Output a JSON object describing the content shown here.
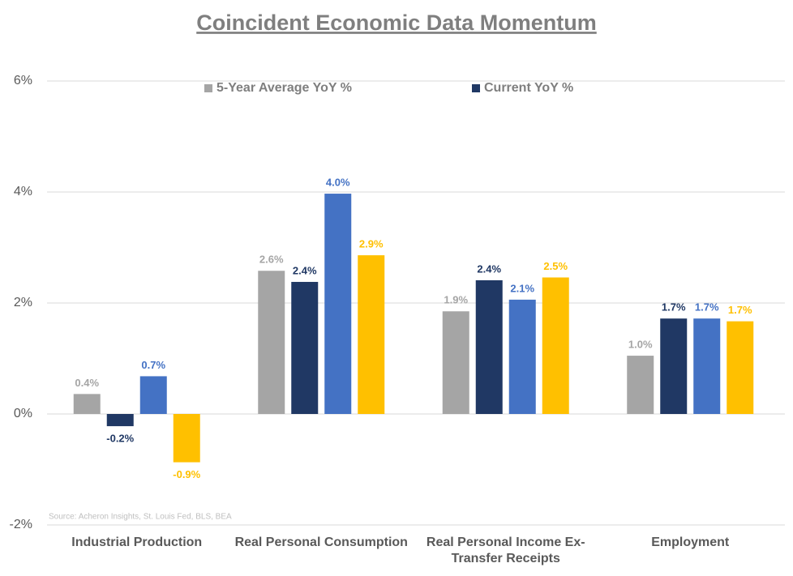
{
  "chart_data": {
    "type": "bar",
    "title": "Coincident Economic Data Momentum",
    "annotation": "Source: Acheron Insights, St. Louis Fed, BLS, BEA",
    "categories": [
      "Industrial Production",
      "Real Personal Consumption",
      "Real Personal Income Ex-Transfer Receipts",
      "Employment"
    ],
    "series": [
      {
        "name": "5-Year Average YoY %",
        "color": "#a5a5a5",
        "values": [
          0.36,
          2.58,
          1.85,
          1.05
        ],
        "value_labels": [
          "0.4%",
          "2.6%",
          "1.9%",
          "1.0%"
        ]
      },
      {
        "name": "Current YoY %",
        "color": "#203864",
        "values": [
          -0.22,
          2.38,
          2.41,
          1.72
        ],
        "value_labels": [
          "-0.2%",
          "2.4%",
          "2.4%",
          "1.7%"
        ]
      },
      {
        "color": "#4472c4",
        "values": [
          0.68,
          3.97,
          2.06,
          1.72
        ],
        "value_labels": [
          "0.7%",
          "4.0%",
          "2.1%",
          "1.7%"
        ]
      },
      {
        "color": "#ffc000",
        "values": [
          -0.87,
          2.86,
          2.46,
          1.67
        ],
        "value_labels": [
          "-0.9%",
          "2.9%",
          "2.5%",
          "1.7%"
        ]
      }
    ],
    "ylim": [
      -2,
      6
    ],
    "yticks": [
      {
        "value": -2,
        "label": "-2%"
      },
      {
        "value": 0,
        "label": "0%"
      },
      {
        "value": 2,
        "label": "2%"
      },
      {
        "value": 4,
        "label": "4%"
      },
      {
        "value": 6,
        "label": "6%"
      }
    ],
    "grid": true,
    "legend": "top"
  }
}
